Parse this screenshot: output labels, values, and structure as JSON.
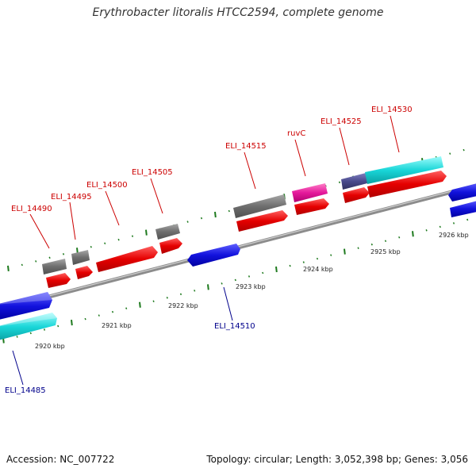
{
  "title": "Erythrobacter litoralis HTCC2594, complete genome",
  "footer": {
    "accession": "Accession: NC_007722",
    "summary": "Topology: circular; Length: 3,052,398 bp; Genes: 3,056"
  },
  "colors": {
    "backbone": "#8c8c8c",
    "tick": "#1e7a1e",
    "label_forward": "#cc0000",
    "label_reverse": "#00008b",
    "gray_feature": "#6e6e6e",
    "red_feature": "#e50000",
    "blue_feature": "#1212dd",
    "cyan_feature": "#19d6d8",
    "magenta_feature": "#e5199b",
    "purple_feature": "#4a4a8c"
  },
  "kbp_labels": [
    "2920 kbp",
    "2921 kbp",
    "2922 kbp",
    "2923 kbp",
    "2924 kbp",
    "2925 kbp",
    "2926 kbp"
  ],
  "gene_labels": {
    "ELI_14485": "ELI_14485",
    "ELI_14490": "ELI_14490",
    "ELI_14495": "ELI_14495",
    "ELI_14500": "ELI_14500",
    "ELI_14505": "ELI_14505",
    "ELI_14510": "ELI_14510",
    "ELI_14515": "ELI_14515",
    "ruvC": "ruvC",
    "ELI_14525": "ELI_14525",
    "ELI_14530": "ELI_14530"
  }
}
